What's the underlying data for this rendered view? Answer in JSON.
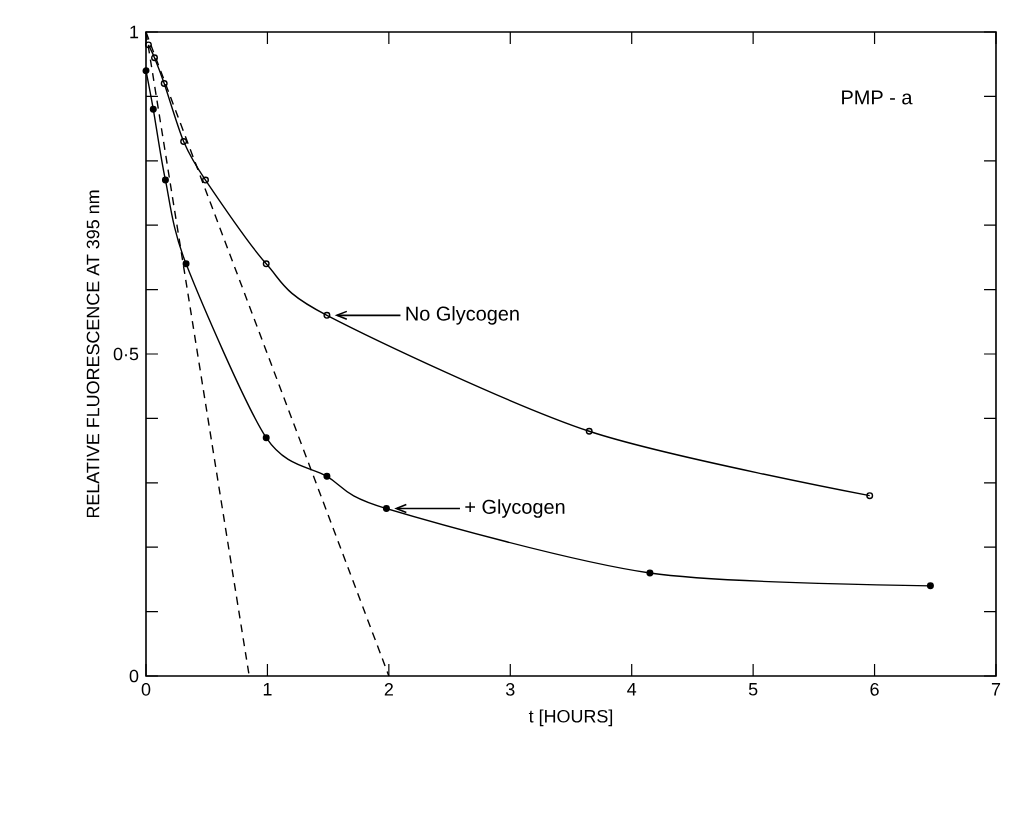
{
  "chart_data": {
    "type": "line",
    "xlabel": "t [HOURS]",
    "ylabel": "RELATIVE FLUORESCENCE AT 395 nm",
    "xlim": [
      0,
      7
    ],
    "xticks": [
      0,
      1,
      2,
      3,
      4,
      5,
      6,
      7
    ],
    "ylim": [
      0,
      1
    ],
    "yticks": [
      0,
      {
        "value": 0.5,
        "label": "0·5"
      },
      1
    ],
    "grid": false,
    "marker": "circle",
    "series": [
      {
        "color": "#000000",
        "x": [
          0.02,
          0.07,
          0.15,
          0.31,
          0.49,
          0.99,
          1.49,
          3.65,
          5.96
        ],
        "values": [
          0.98,
          0.96,
          0.92,
          0.83,
          0.77,
          0.64,
          0.56,
          0.38,
          0.28
        ]
      },
      {
        "color": "#000000",
        "x": [
          0.0,
          0.06,
          0.16,
          0.33,
          0.99,
          1.49,
          1.98,
          4.15,
          6.46
        ],
        "values": [
          0.94,
          0.88,
          0.77,
          0.64,
          0.37,
          0.31,
          0.26,
          0.16,
          0.14
        ]
      },
      {
        "type": "line",
        "color": "#000000",
        "line_style": "dashed",
        "marker": "none",
        "x": [
          0,
          0.85
        ],
        "values": [
          1,
          0
        ]
      },
      {
        "type": "line",
        "color": "#000000",
        "line_style": "dashed",
        "marker": "none",
        "x": [
          0,
          2
        ],
        "values": [
          1,
          0
        ]
      }
    ],
    "annotations": [
      "PMP - a",
      "No Glycogen",
      "+ Glycogen"
    ]
  }
}
